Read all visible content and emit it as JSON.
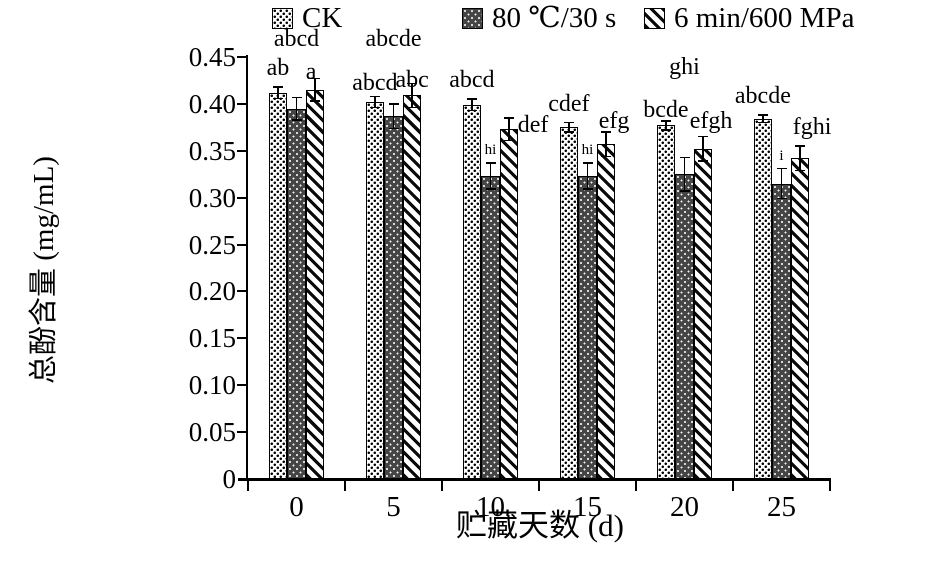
{
  "legend": {
    "items": [
      {
        "label": "CK",
        "pattern": "light-dots"
      },
      {
        "label": "80 ℃/30 s",
        "pattern": "dark-dots"
      },
      {
        "label": "6 min/600 MPa",
        "pattern": "diag-stripes"
      }
    ]
  },
  "chart_data": {
    "type": "bar",
    "title": "",
    "xlabel": "贮藏天数 (d)",
    "ylabel": "总酚含量 (mg/mL)",
    "categories": [
      "0",
      "5",
      "10",
      "15",
      "20",
      "25"
    ],
    "ylim": [
      0,
      0.45
    ],
    "ytick_step": 0.05,
    "ytick_labels_top_down": [
      "0.45",
      "0.40",
      "0.35",
      "0.30",
      "0.25",
      "0.20",
      "0.15",
      "0.10",
      "0.05",
      "0"
    ],
    "grid": false,
    "legend_position": "top",
    "series": [
      {
        "name": "CK",
        "key": "ck",
        "pattern": "light-dots",
        "values": [
          0.412,
          0.402,
          0.399,
          0.375,
          0.377,
          0.384
        ],
        "errors": [
          0.006,
          0.006,
          0.006,
          0.005,
          0.005,
          0.004
        ],
        "sig_letters": [
          {
            "t": "ab"
          },
          {
            "t": "abcd",
            "dy": 6
          },
          {
            "t": "abcd"
          },
          {
            "t": "cdef"
          },
          {
            "t": "bcde",
            "dy": 8
          },
          {
            "t": "abcde"
          }
        ]
      },
      {
        "name": "80 ℃/30 s",
        "key": "80c-30s",
        "pattern": "dark-dots",
        "values": [
          0.395,
          0.387,
          0.323,
          0.323,
          0.325,
          0.315
        ],
        "errors": [
          0.012,
          0.013,
          0.014,
          0.014,
          0.018,
          0.016
        ],
        "sig_letters": [
          {
            "t": "abcd",
            "raise": 52
          },
          {
            "t": "abcde",
            "raise": 52
          },
          {
            "t": "hi",
            "small": true
          },
          {
            "t": "hi",
            "small": true
          },
          {
            "t": "ghi",
            "raise": 80
          },
          {
            "t": "i",
            "small": true
          }
        ]
      },
      {
        "name": "6 min/600 MPa",
        "key": "6min-600mpa",
        "pattern": "diag-stripes",
        "values": [
          0.415,
          0.409,
          0.373,
          0.357,
          0.352,
          0.342
        ],
        "errors": [
          0.012,
          0.013,
          0.012,
          0.013,
          0.013,
          0.013
        ],
        "sig_letters": [
          {
            "t": "a",
            "dx": -4,
            "dy": 12
          },
          {
            "t": "abc",
            "dy": 16
          },
          {
            "t": "def",
            "dx": 24,
            "dy": 26
          },
          {
            "t": "efg",
            "dx": 8,
            "dy": 8
          },
          {
            "t": "efgh",
            "dx": 8,
            "dy": 3
          },
          {
            "t": "fghi",
            "dx": 12
          }
        ]
      }
    ]
  }
}
